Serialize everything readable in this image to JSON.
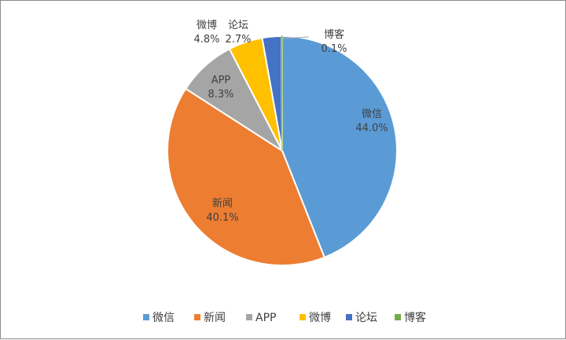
{
  "chart_data": {
    "type": "pie",
    "title": "",
    "slices": [
      {
        "label": "微信",
        "value": 44.0,
        "value_label": "44.0%",
        "color": "#5B9BD5"
      },
      {
        "label": "新闻",
        "value": 40.1,
        "value_label": "40.1%",
        "color": "#ED7D31"
      },
      {
        "label": "APP",
        "value": 8.3,
        "value_label": "8.3%",
        "color": "#A5A5A5"
      },
      {
        "label": "微博",
        "value": 4.8,
        "value_label": "4.8%",
        "color": "#FFC000"
      },
      {
        "label": "论坛",
        "value": 2.7,
        "value_label": "2.7%",
        "color": "#4472C4"
      },
      {
        "label": "博客",
        "value": 0.1,
        "value_label": "0.1%",
        "color": "#70AD47"
      }
    ],
    "start_angle": "12 o'clock",
    "direction": "clockwise",
    "data_labels": true,
    "legend": "bottom"
  }
}
